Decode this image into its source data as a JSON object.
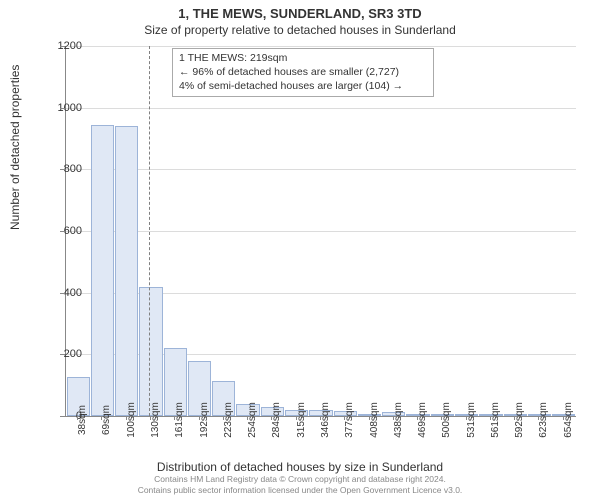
{
  "chart": {
    "type": "histogram",
    "title_line1": "1, THE MEWS, SUNDERLAND, SR3 3TD",
    "title_line2": "Size of property relative to detached houses in Sunderland",
    "ylabel": "Number of detached properties",
    "xlabel": "Distribution of detached houses by size in Sunderland",
    "ylim": [
      0,
      1200
    ],
    "ytick_step": 200,
    "yticks": [
      0,
      200,
      400,
      600,
      800,
      1000,
      1200
    ],
    "xticks": [
      "38sqm",
      "69sqm",
      "100sqm",
      "130sqm",
      "161sqm",
      "192sqm",
      "223sqm",
      "254sqm",
      "284sqm",
      "315sqm",
      "346sqm",
      "377sqm",
      "408sqm",
      "438sqm",
      "469sqm",
      "500sqm",
      "531sqm",
      "561sqm",
      "592sqm",
      "623sqm",
      "654sqm"
    ],
    "values": [
      125,
      945,
      940,
      420,
      220,
      180,
      115,
      38,
      30,
      20,
      18,
      15,
      3,
      12,
      3,
      3,
      3,
      3,
      3,
      3,
      3
    ],
    "bar_fill": "#e0e8f5",
    "bar_border": "#9db4d8",
    "grid_color": "#dcdcdc",
    "background_color": "#ffffff",
    "title_fontsize": 13,
    "label_fontsize": 12,
    "tick_fontsize": 11
  },
  "annotation": {
    "line1": "1 THE MEWS: 219sqm",
    "line2": "← 96% of detached houses are smaller (2,727)",
    "line3": "4% of semi-detached houses are larger (104) →"
  },
  "footer": {
    "line1": "Contains HM Land Registry data © Crown copyright and database right 2024.",
    "line2": "Contains public sector information licensed under the Open Government Licence v3.0."
  }
}
